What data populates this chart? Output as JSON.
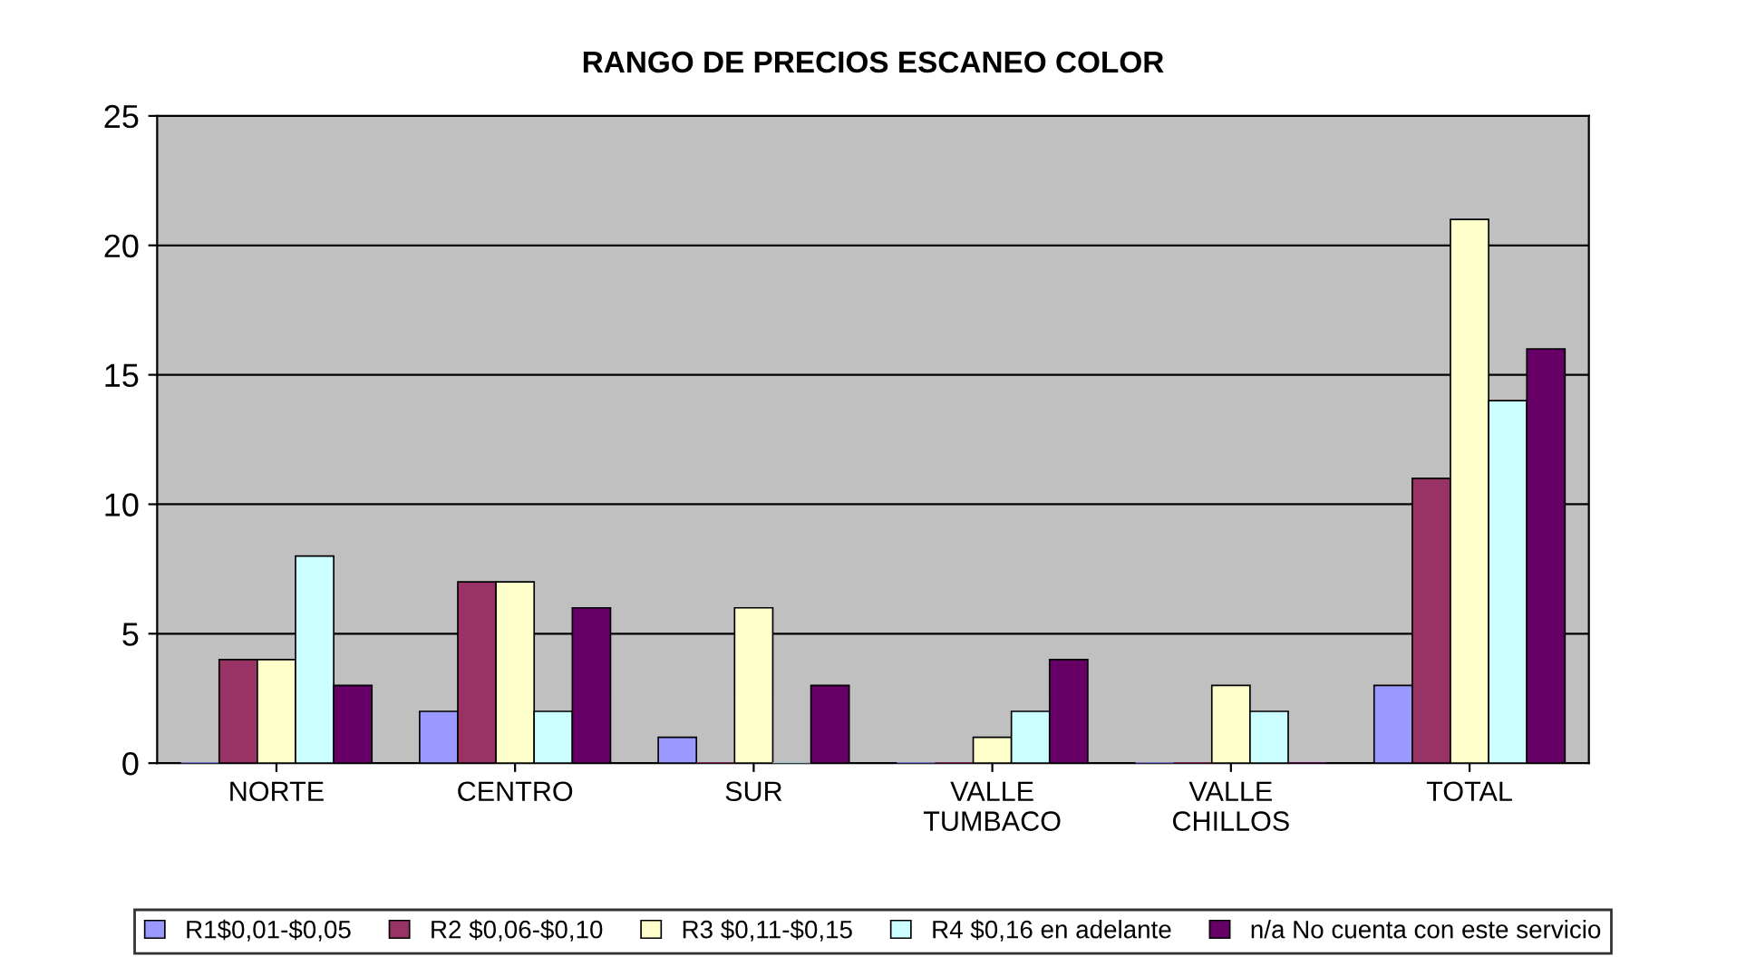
{
  "chart_data": {
    "type": "bar",
    "title": "RANGO DE PRECIOS ESCANEO COLOR",
    "categories": [
      "NORTE",
      "CENTRO",
      "SUR",
      "VALLE\nTUMBACO",
      "VALLE\nCHILLOS",
      "TOTAL"
    ],
    "series": [
      {
        "name": "R1$0,01-$0,05",
        "color": "#9999ff",
        "values": [
          0,
          2,
          1,
          0,
          0,
          3
        ]
      },
      {
        "name": "R2 $0,06-$0,10",
        "color": "#993366",
        "values": [
          4,
          7,
          0,
          0,
          0,
          11
        ]
      },
      {
        "name": "R3 $0,11-$0,15",
        "color": "#ffffcc",
        "values": [
          4,
          7,
          6,
          1,
          3,
          21
        ]
      },
      {
        "name": "R4 $0,16 en adelante",
        "color": "#ccffff",
        "values": [
          8,
          2,
          0,
          2,
          2,
          14
        ]
      },
      {
        "name": "n/a No cuenta con este servicio",
        "color": "#660066",
        "values": [
          3,
          6,
          3,
          4,
          0,
          16
        ]
      }
    ],
    "ylim": [
      0,
      25
    ],
    "yticks": [
      0,
      5,
      10,
      15,
      20,
      25
    ],
    "grid": "y",
    "legend": "bottom"
  }
}
